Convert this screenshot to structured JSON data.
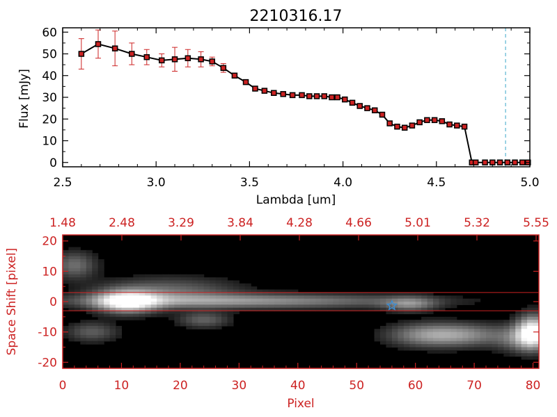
{
  "chart_data": [
    {
      "type": "line",
      "title": "2210316.17",
      "xlabel": "Lambda [um]",
      "ylabel": "Flux [mJy]",
      "xlim": [
        2.5,
        5.0
      ],
      "ylim": [
        -2,
        62
      ],
      "xticks": [
        "2.5",
        "3.0",
        "3.5",
        "4.0",
        "4.5",
        "5.0"
      ],
      "yticks": [
        "0",
        "10",
        "20",
        "30",
        "40",
        "50",
        "60"
      ],
      "grid": false,
      "series": [
        {
          "x": [
            2.6,
            2.69,
            2.78,
            2.87,
            2.95,
            3.03,
            3.1,
            3.17,
            3.24,
            3.3,
            3.36,
            3.42,
            3.48,
            3.53,
            3.58,
            3.63,
            3.68,
            3.73,
            3.78,
            3.82,
            3.86,
            3.9,
            3.94,
            3.97,
            4.01,
            4.05,
            4.09,
            4.13,
            4.17,
            4.21,
            4.25,
            4.29,
            4.33,
            4.37,
            4.41,
            4.45,
            4.49,
            4.53,
            4.57,
            4.61,
            4.65,
            4.69,
            4.71,
            4.76,
            4.8,
            4.84,
            4.88,
            4.92,
            4.96,
            4.99
          ],
          "y": [
            50,
            54.5,
            52.5,
            50,
            48.5,
            47,
            47.5,
            48,
            47.5,
            46.5,
            43.5,
            40,
            37,
            34,
            33,
            32,
            31.5,
            31,
            31,
            30.5,
            30.5,
            30.5,
            30,
            30,
            29,
            27.5,
            26,
            25,
            24,
            22,
            18,
            16.5,
            16,
            17,
            18.5,
            19.5,
            19.5,
            19,
            17.5,
            17,
            16.5,
            0,
            0,
            0,
            0,
            0,
            0,
            0,
            0,
            0
          ],
          "yerr": [
            7,
            6.5,
            8,
            5,
            3.5,
            3,
            5.5,
            4,
            3.5,
            2,
            2,
            1,
            1,
            1,
            1,
            1,
            1,
            1,
            1,
            1,
            1,
            1,
            1,
            1,
            1,
            1,
            1,
            1,
            1,
            1,
            1,
            1,
            1,
            1,
            1,
            1,
            1,
            1,
            1,
            1,
            1,
            0,
            0,
            0,
            0,
            0,
            0,
            0,
            0,
            0
          ]
        }
      ],
      "annotations": [
        {
          "type": "vline",
          "x": 4.87,
          "style": "dashed",
          "color": "#3aa6c8"
        },
        {
          "type": "hline",
          "y": 0,
          "x_from": 4.71,
          "x_to": 5.0,
          "style": "dashed",
          "color": "#cc2222"
        }
      ]
    },
    {
      "type": "heatmap",
      "xlabel": "Pixel",
      "ylabel": "Space Shift [pixel]",
      "xlim": [
        0,
        81
      ],
      "ylim": [
        -22,
        22
      ],
      "xticks": [
        "0",
        "10",
        "20",
        "30",
        "40",
        "50",
        "60",
        "70",
        "80"
      ],
      "yticks": [
        "-20",
        "-10",
        "0",
        "10",
        "20"
      ],
      "top_axis_ticks": [
        "1.48",
        "2.48",
        "3.29",
        "3.84",
        "4.28",
        "4.66",
        "5.01",
        "5.32",
        "5.55"
      ],
      "colormap": "grayscale",
      "extraction_lines_y": [
        3,
        -3
      ],
      "marker": {
        "symbol": "star",
        "x": 56,
        "y": -1.3,
        "color": "#3a8fd8"
      },
      "features": [
        {
          "x": 11,
          "y": 0,
          "sx": 3.5,
          "sy": 2.4,
          "amp": 1.0
        },
        {
          "x": 30,
          "y": 0.2,
          "sx": 20,
          "sy": 1.6,
          "amp": 0.5
        },
        {
          "x": 18,
          "y": 3.5,
          "sx": 8,
          "sy": 3,
          "amp": 0.32
        },
        {
          "x": 2,
          "y": 12,
          "sx": 2.5,
          "sy": 3,
          "amp": 0.35
        },
        {
          "x": 5,
          "y": -10,
          "sx": 3,
          "sy": 2.2,
          "amp": 0.28
        },
        {
          "x": 24,
          "y": -6,
          "sx": 3,
          "sy": 1.8,
          "amp": 0.3
        },
        {
          "x": 59,
          "y": -0.8,
          "sx": 3,
          "sy": 1.6,
          "amp": 0.4
        },
        {
          "x": 63,
          "y": -11,
          "sx": 5,
          "sy": 2.6,
          "amp": 0.55
        },
        {
          "x": 80,
          "y": -10,
          "sx": 1.8,
          "sy": 3.5,
          "amp": 1.0
        },
        {
          "x": 78,
          "y": -12,
          "sx": 3,
          "sy": 3,
          "amp": 0.4
        },
        {
          "x": 70,
          "y": -11,
          "sx": 4,
          "sy": 2.5,
          "amp": 0.25
        }
      ]
    }
  ]
}
